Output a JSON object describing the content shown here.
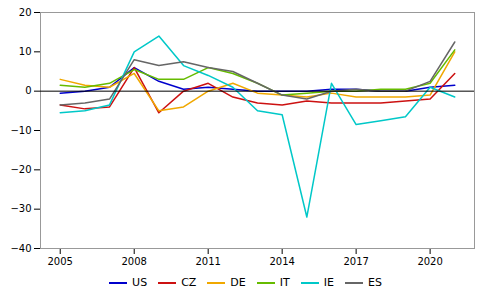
{
  "chart_data": {
    "type": "line",
    "x": [
      2005,
      2006,
      2007,
      2008,
      2009,
      2010,
      2011,
      2012,
      2013,
      2014,
      2015,
      2016,
      2017,
      2018,
      2019,
      2020,
      2021
    ],
    "series": [
      {
        "name": "US",
        "color": "#0000cc",
        "values": [
          -0.5,
          0.0,
          1.0,
          6.0,
          2.5,
          0.5,
          1.0,
          0.5,
          0.0,
          0.0,
          0.0,
          0.5,
          0.5,
          0.0,
          0.0,
          1.0,
          1.5
        ]
      },
      {
        "name": "CZ",
        "color": "#cc1111",
        "values": [
          -3.5,
          -4.5,
          -4.0,
          6.0,
          -5.5,
          0.0,
          2.0,
          -1.5,
          -3.0,
          -3.5,
          -2.5,
          -3.0,
          -3.0,
          -3.0,
          -2.5,
          -2.0,
          4.5
        ]
      },
      {
        "name": "DE",
        "color": "#f0a800",
        "values": [
          3.0,
          1.5,
          1.0,
          4.5,
          -5.0,
          -4.0,
          0.0,
          2.0,
          -0.5,
          -1.0,
          -1.5,
          -0.5,
          -1.5,
          -1.5,
          -1.5,
          -1.0,
          10.0
        ]
      },
      {
        "name": "IT",
        "color": "#66bb00",
        "values": [
          1.5,
          1.0,
          2.0,
          5.5,
          3.0,
          3.0,
          6.0,
          4.5,
          2.0,
          -1.0,
          -0.5,
          0.0,
          0.0,
          0.5,
          0.5,
          2.0,
          10.5
        ]
      },
      {
        "name": "IE",
        "color": "#00c8c8",
        "values": [
          -5.5,
          -5.0,
          -3.5,
          10.0,
          14.0,
          6.5,
          4.0,
          1.0,
          -5.0,
          -6.0,
          -32.0,
          2.0,
          -8.5,
          -7.5,
          -6.5,
          1.0,
          -1.5
        ]
      },
      {
        "name": "ES",
        "color": "#666666",
        "values": [
          -3.5,
          -3.0,
          -2.0,
          8.0,
          6.5,
          7.5,
          6.0,
          5.0,
          2.0,
          -1.0,
          -2.0,
          0.0,
          0.5,
          0.0,
          0.0,
          2.5,
          12.5
        ]
      }
    ],
    "xlim": [
      2004.2,
      2021.8
    ],
    "xticks": [
      2005,
      2008,
      2011,
      2014,
      2017,
      2020
    ],
    "ylim": [
      -40,
      20
    ],
    "yticks": [
      -40,
      -30,
      -20,
      -10,
      0,
      10,
      20
    ],
    "grid": false,
    "legend": "bottom"
  }
}
